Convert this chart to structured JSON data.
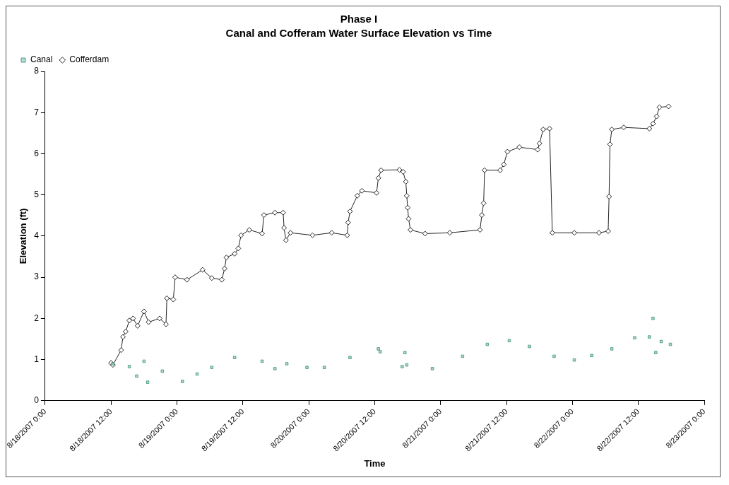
{
  "chart_data": {
    "type": "line",
    "title": "Phase I",
    "subtitle": "Canal and Cofferam Water Surface Elevation vs Time",
    "xlabel": "Time",
    "ylabel": "Elevation (ft)",
    "xlim": [
      "2007-08-18T00:00",
      "2007-08-23T00:00"
    ],
    "xticks": [
      {
        "value": "2007-08-18T00:00",
        "label": "8/18/2007 0:00"
      },
      {
        "value": "2007-08-18T12:00",
        "label": "8/18/2007 12:00"
      },
      {
        "value": "2007-08-19T00:00",
        "label": "8/19/2007 0:00"
      },
      {
        "value": "2007-08-19T12:00",
        "label": "8/19/2007 12:00"
      },
      {
        "value": "2007-08-20T00:00",
        "label": "8/20/2007 0:00"
      },
      {
        "value": "2007-08-20T12:00",
        "label": "8/20/2007 12:00"
      },
      {
        "value": "2007-08-21T00:00",
        "label": "8/21/2007 0:00"
      },
      {
        "value": "2007-08-21T12:00",
        "label": "8/21/2007 12:00"
      },
      {
        "value": "2007-08-22T00:00",
        "label": "8/22/2007 0:00"
      },
      {
        "value": "2007-08-22T12:00",
        "label": "8/22/2007 12:00"
      },
      {
        "value": "2007-08-23T00:00",
        "label": "8/23/2007 0:00"
      }
    ],
    "ylim": [
      0,
      8
    ],
    "yticks": [
      0,
      1,
      2,
      3,
      4,
      5,
      6,
      7,
      8
    ],
    "grid": false,
    "legend": "top left",
    "series": [
      {
        "name": "Cofferdam",
        "type": "line",
        "marker": "diamond",
        "line_style": "solid",
        "color": "#222222",
        "x": [
          "2007-08-18T12:00",
          "2007-08-18T12:20",
          "2007-08-18T13:50",
          "2007-08-18T14:10",
          "2007-08-18T14:40",
          "2007-08-18T15:20",
          "2007-08-18T16:00",
          "2007-08-18T16:50",
          "2007-08-18T18:00",
          "2007-08-18T18:50",
          "2007-08-18T20:50",
          "2007-08-18T22:00",
          "2007-08-18T22:10",
          "2007-08-18T23:20",
          "2007-08-18T23:40",
          "2007-08-19T01:50",
          "2007-08-19T04:40",
          "2007-08-19T06:20",
          "2007-08-19T08:10",
          "2007-08-19T08:40",
          "2007-08-19T09:00",
          "2007-08-19T10:30",
          "2007-08-19T11:10",
          "2007-08-19T11:40",
          "2007-08-19T13:10",
          "2007-08-19T15:30",
          "2007-08-19T15:50",
          "2007-08-19T17:50",
          "2007-08-19T19:20",
          "2007-08-19T19:30",
          "2007-08-19T19:50",
          "2007-08-19T20:40",
          "2007-08-20T00:40",
          "2007-08-20T04:10",
          "2007-08-20T07:00",
          "2007-08-20T07:10",
          "2007-08-20T07:30",
          "2007-08-20T08:50",
          "2007-08-20T09:40",
          "2007-08-20T12:20",
          "2007-08-20T12:40",
          "2007-08-20T13:10",
          "2007-08-20T16:30",
          "2007-08-20T17:10",
          "2007-08-20T17:40",
          "2007-08-20T17:50",
          "2007-08-20T18:00",
          "2007-08-20T18:10",
          "2007-08-20T18:30",
          "2007-08-20T21:10",
          "2007-08-21T01:40",
          "2007-08-21T07:10",
          "2007-08-21T07:30",
          "2007-08-21T07:50",
          "2007-08-21T08:00",
          "2007-08-21T10:50",
          "2007-08-21T11:30",
          "2007-08-21T12:10",
          "2007-08-21T14:20",
          "2007-08-21T17:40",
          "2007-08-21T18:00",
          "2007-08-21T18:40",
          "2007-08-21T19:50",
          "2007-08-21T20:20",
          "2007-08-22T00:20",
          "2007-08-22T04:50",
          "2007-08-22T06:30",
          "2007-08-22T06:40",
          "2007-08-22T06:50",
          "2007-08-22T07:10",
          "2007-08-22T09:20",
          "2007-08-22T14:00",
          "2007-08-22T14:40",
          "2007-08-22T15:20",
          "2007-08-22T15:50",
          "2007-08-22T17:30"
        ],
        "values": [
          0.92,
          0.87,
          1.23,
          1.55,
          1.68,
          1.95,
          2.0,
          1.82,
          2.17,
          1.91,
          2.0,
          1.86,
          2.49,
          2.46,
          3.0,
          2.94,
          3.18,
          2.98,
          2.94,
          3.21,
          3.48,
          3.57,
          3.7,
          4.02,
          4.15,
          4.06,
          4.51,
          4.57,
          4.57,
          4.2,
          3.9,
          4.08,
          4.02,
          4.08,
          4.02,
          4.33,
          4.6,
          4.98,
          5.1,
          5.05,
          5.41,
          5.6,
          5.61,
          5.56,
          5.32,
          4.98,
          4.69,
          4.42,
          4.15,
          4.06,
          4.08,
          4.15,
          4.51,
          4.8,
          5.6,
          5.6,
          5.74,
          6.05,
          6.16,
          6.1,
          6.25,
          6.59,
          6.61,
          4.08,
          4.08,
          4.08,
          4.12,
          4.96,
          6.23,
          6.59,
          6.64,
          6.61,
          6.73,
          6.91,
          7.13,
          7.15
        ]
      },
      {
        "name": "Canal",
        "type": "scatter",
        "marker": "square",
        "color": "#4f9e8c",
        "x": [
          "2007-08-18T12:20",
          "2007-08-18T15:20",
          "2007-08-18T16:40",
          "2007-08-18T18:00",
          "2007-08-18T18:40",
          "2007-08-18T21:20",
          "2007-08-19T01:00",
          "2007-08-19T03:40",
          "2007-08-19T06:20",
          "2007-08-19T10:30",
          "2007-08-19T15:30",
          "2007-08-19T17:50",
          "2007-08-19T20:00",
          "2007-08-19T23:40",
          "2007-08-20T02:50",
          "2007-08-20T07:30",
          "2007-08-20T12:40",
          "2007-08-20T13:00",
          "2007-08-20T17:00",
          "2007-08-20T17:30",
          "2007-08-20T17:50",
          "2007-08-20T22:30",
          "2007-08-21T04:00",
          "2007-08-21T08:30",
          "2007-08-21T12:30",
          "2007-08-21T16:10",
          "2007-08-21T20:40",
          "2007-08-22T00:20",
          "2007-08-22T03:30",
          "2007-08-22T07:10",
          "2007-08-22T11:20",
          "2007-08-22T14:00",
          "2007-08-22T14:40",
          "2007-08-22T15:10",
          "2007-08-22T16:10",
          "2007-08-22T17:50"
        ],
        "values": [
          0.9,
          0.83,
          0.6,
          0.96,
          0.45,
          0.72,
          0.47,
          0.65,
          0.81,
          1.05,
          0.96,
          0.78,
          0.9,
          0.81,
          0.81,
          1.05,
          1.26,
          1.19,
          0.83,
          1.17,
          0.87,
          0.78,
          1.08,
          1.37,
          1.46,
          1.32,
          1.08,
          0.99,
          1.1,
          1.26,
          1.53,
          1.55,
          2.0,
          1.17,
          1.44,
          1.37
        ]
      }
    ]
  }
}
